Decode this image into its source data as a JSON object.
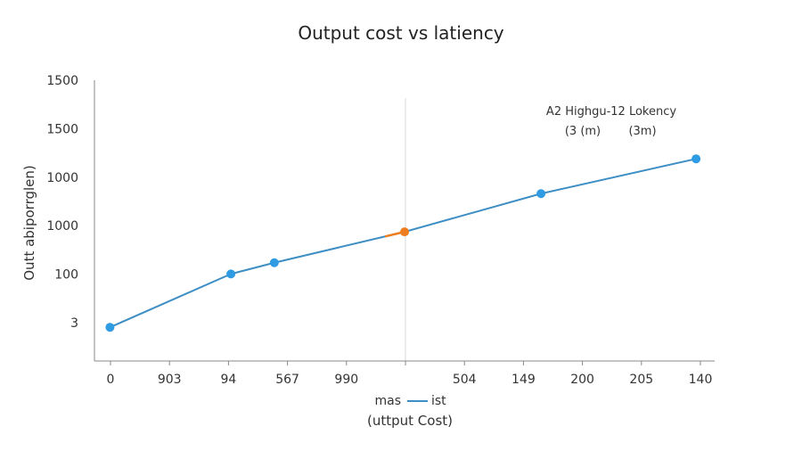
{
  "chart_data": {
    "type": "line",
    "title": "Output cost vs latiency",
    "xlabel": "(uttput Cost)",
    "ylabel": "Outt abiporrglen)",
    "x_ticks": [
      "0",
      "903",
      "94",
      "567",
      "990",
      "",
      "504",
      "149",
      "200",
      "205",
      "140"
    ],
    "y_ticks": [
      "1500",
      "1500",
      "1000",
      "1000",
      "100",
      "3"
    ],
    "x": [
      0.25,
      2.2,
      2.9,
      5.0,
      7.2,
      9.7
    ],
    "y": [
      0.6,
      1.55,
      1.75,
      2.3,
      2.98,
      3.6
    ],
    "highlight_index": 3,
    "annotation": {
      "line1": "A2 Highgu-12 Lokency",
      "line2a": "(3 (m)",
      "line2b": "(3m)"
    },
    "legend": {
      "left": "mas",
      "right": "ist"
    },
    "colors": {
      "line": "#3d8ec4",
      "point": "#2f9be3",
      "highlight": "#ee7d1f",
      "axis": "#888888",
      "grid": "#d8d8d8"
    },
    "xlim": [
      0,
      10
    ],
    "ylim": [
      0,
      5
    ],
    "grid": "vertical"
  }
}
